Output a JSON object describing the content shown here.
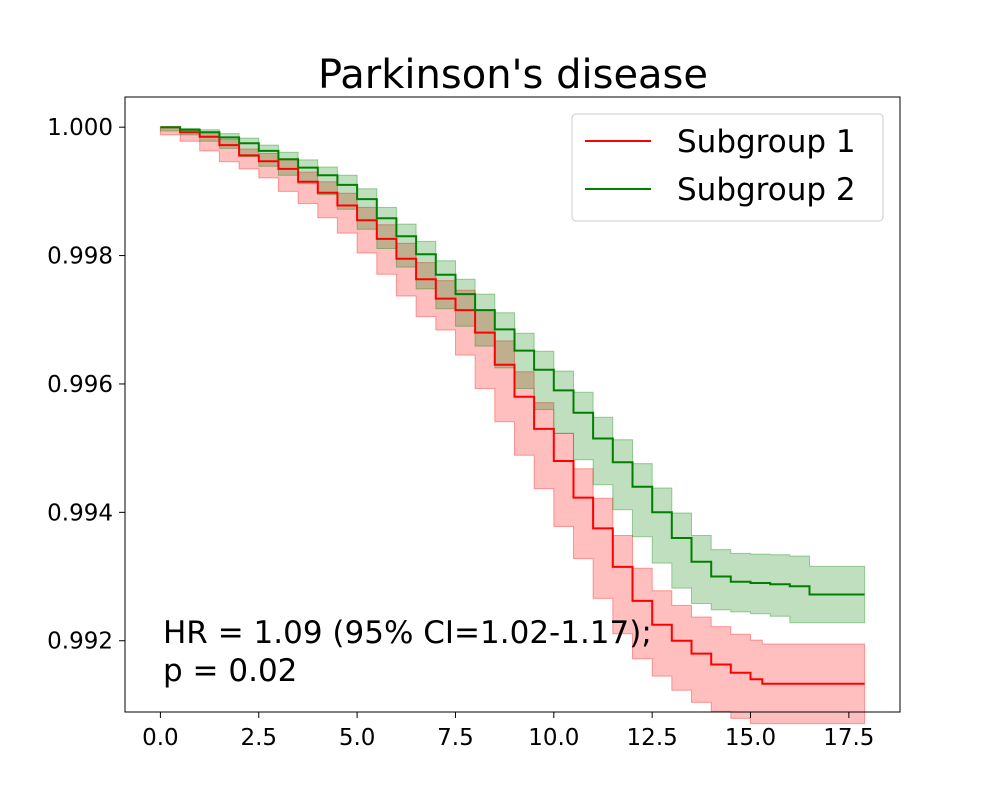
{
  "chart_data": {
    "type": "line",
    "title": "Parkinson's disease",
    "xlabel": "",
    "ylabel": "",
    "xlim": [
      -0.9,
      18.8
    ],
    "ylim": [
      0.99089,
      1.00047
    ],
    "x_ticks": [
      0.0,
      2.5,
      5.0,
      7.5,
      10.0,
      12.5,
      15.0,
      17.5
    ],
    "x_tick_labels": [
      "0.0",
      "2.5",
      "5.0",
      "7.5",
      "10.0",
      "12.5",
      "15.0",
      "17.5"
    ],
    "y_ticks": [
      0.992,
      0.994,
      0.996,
      0.998,
      1.0
    ],
    "y_tick_labels": [
      "0.992",
      "0.994",
      "0.996",
      "0.998",
      "1.000"
    ],
    "grid": false,
    "legend_position": "top-right",
    "annotation": {
      "line1": "HR = 1.09 (95% CI=1.02-1.17);",
      "line2": "p = 0.02"
    },
    "series": [
      {
        "name": "Subgroup 1",
        "color": "#ff0000",
        "band_color": "#ff0000",
        "x": [
          0.0,
          0.5,
          1.0,
          1.5,
          2.0,
          2.5,
          3.0,
          3.5,
          4.0,
          4.5,
          5.0,
          5.5,
          6.0,
          6.5,
          7.0,
          7.5,
          8.0,
          8.5,
          9.0,
          9.5,
          10.0,
          10.5,
          11.0,
          11.5,
          12.0,
          12.5,
          13.0,
          13.5,
          14.0,
          14.5,
          15.0,
          15.3,
          16.0,
          17.0,
          17.9
        ],
        "y": [
          1.0,
          0.99992,
          0.99985,
          0.99972,
          0.99956,
          0.99947,
          0.99935,
          0.99915,
          0.99898,
          0.99878,
          0.99855,
          0.99826,
          0.99795,
          0.99763,
          0.99733,
          0.99715,
          0.9968,
          0.9963,
          0.9958,
          0.9953,
          0.9948,
          0.99423,
          0.99375,
          0.99315,
          0.99262,
          0.99225,
          0.992,
          0.9918,
          0.99163,
          0.9915,
          0.9914,
          0.99133,
          0.99133,
          0.99133,
          0.99133
        ],
        "lower": [
          1.0,
          0.99988,
          0.99978,
          0.99963,
          0.99946,
          0.99935,
          0.99921,
          0.999,
          0.99881,
          0.99859,
          0.99835,
          0.99804,
          0.99771,
          0.99737,
          0.99705,
          0.99684,
          0.99645,
          0.99593,
          0.99541,
          0.99489,
          0.99437,
          0.99378,
          0.99328,
          0.99266,
          0.99211,
          0.99172,
          0.99145,
          0.99123,
          0.99104,
          0.9909,
          0.99079,
          0.99071,
          0.99071,
          0.99071,
          0.99071
        ],
        "upper": [
          1.0,
          0.99996,
          0.99992,
          0.99981,
          0.99966,
          0.99959,
          0.99949,
          0.9993,
          0.99915,
          0.99897,
          0.99875,
          0.99848,
          0.99819,
          0.99789,
          0.99761,
          0.99746,
          0.99715,
          0.99667,
          0.99619,
          0.99571,
          0.99523,
          0.99468,
          0.99422,
          0.99364,
          0.99313,
          0.99278,
          0.99255,
          0.99237,
          0.99222,
          0.9921,
          0.99201,
          0.99195,
          0.99195,
          0.99195,
          0.99195
        ]
      },
      {
        "name": "Subgroup 2",
        "color": "#008000",
        "band_color": "#008000",
        "x": [
          0.0,
          0.5,
          1.0,
          1.5,
          2.0,
          2.5,
          3.0,
          3.5,
          4.0,
          4.5,
          5.0,
          5.5,
          6.0,
          6.5,
          7.0,
          7.5,
          8.0,
          8.5,
          9.0,
          9.5,
          10.0,
          10.5,
          11.0,
          11.5,
          12.0,
          12.5,
          13.0,
          13.5,
          14.0,
          14.5,
          15.0,
          15.5,
          16.0,
          16.5,
          17.0,
          17.9
        ],
        "y": [
          1.0,
          0.99996,
          0.99992,
          0.99984,
          0.99975,
          0.99963,
          0.9995,
          0.99937,
          0.99925,
          0.9991,
          0.99888,
          0.99858,
          0.9983,
          0.99802,
          0.9977,
          0.9974,
          0.99715,
          0.99685,
          0.99652,
          0.99622,
          0.9959,
          0.99555,
          0.99515,
          0.99478,
          0.9944,
          0.994,
          0.9936,
          0.99323,
          0.993,
          0.99292,
          0.9929,
          0.99288,
          0.99285,
          0.99272,
          0.99272,
          0.99272
        ],
        "lower": [
          1.0,
          0.99994,
          0.99988,
          0.99978,
          0.99967,
          0.99954,
          0.99939,
          0.99925,
          0.99912,
          0.99895,
          0.99872,
          0.99841,
          0.99811,
          0.99782,
          0.99748,
          0.99717,
          0.9969,
          0.99659,
          0.99625,
          0.99593,
          0.9956,
          0.99523,
          0.99482,
          0.99443,
          0.99404,
          0.99362,
          0.99321,
          0.99282,
          0.99258,
          0.99248,
          0.99245,
          0.99242,
          0.99238,
          0.99228,
          0.99228,
          0.99228
        ],
        "upper": [
          1.0,
          0.99998,
          0.99996,
          0.9999,
          0.99983,
          0.99972,
          0.99961,
          0.99949,
          0.99938,
          0.99925,
          0.99904,
          0.99875,
          0.99849,
          0.99822,
          0.99792,
          0.99763,
          0.9974,
          0.99711,
          0.99679,
          0.99651,
          0.9962,
          0.99587,
          0.99548,
          0.99513,
          0.99476,
          0.99438,
          0.99399,
          0.99364,
          0.99342,
          0.99336,
          0.99335,
          0.99334,
          0.99332,
          0.99316,
          0.99316,
          0.99316
        ]
      }
    ]
  }
}
